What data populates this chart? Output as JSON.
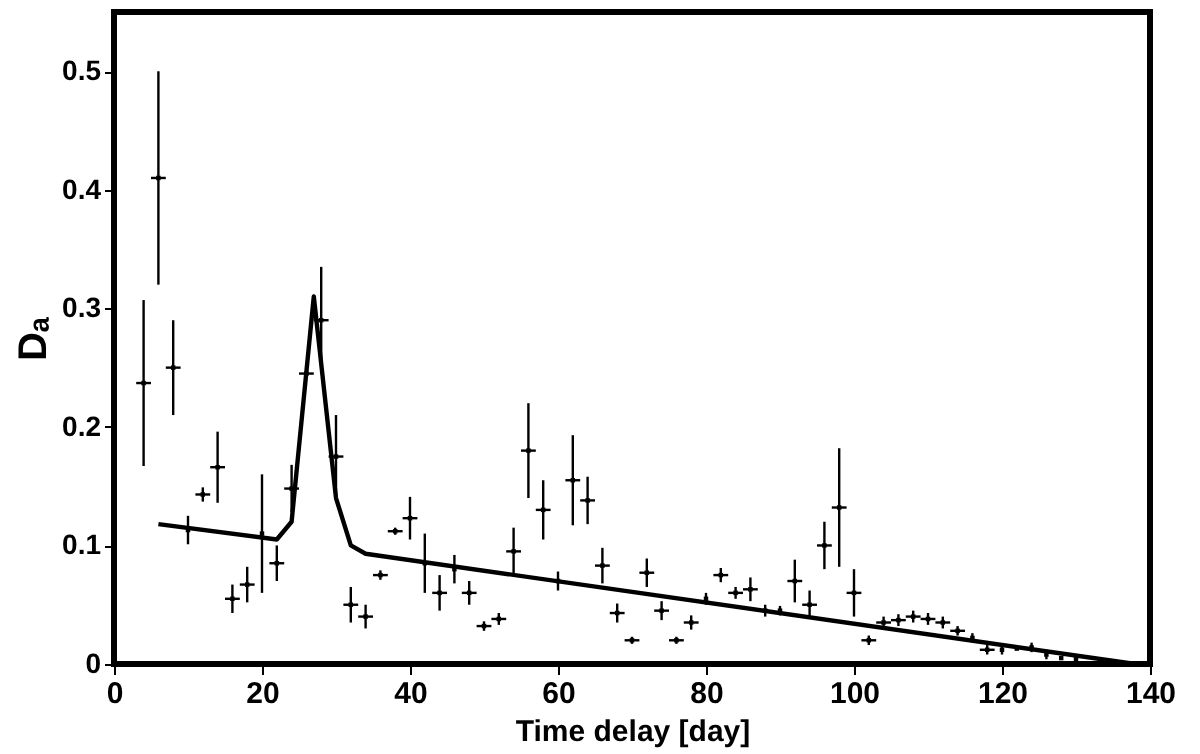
{
  "chart_data": {
    "type": "scatter",
    "xlabel": "Time delay [day]",
    "ylabel": "Dₐ",
    "xlim": [
      0,
      140
    ],
    "ylim": [
      0,
      0.55
    ],
    "xticks": [
      0,
      20,
      40,
      60,
      80,
      100,
      120,
      140
    ],
    "yticks": [
      0,
      0.1,
      0.2,
      0.3,
      0.4,
      0.5
    ],
    "grid": false,
    "series": [
      {
        "color": "#000000",
        "x": [
          4,
          6,
          8,
          10,
          12,
          14,
          16,
          18,
          20,
          22,
          24,
          26,
          28,
          30,
          32,
          34,
          36,
          38,
          40,
          42,
          44,
          46,
          48,
          50,
          52,
          54,
          56,
          58,
          60,
          62,
          64,
          66,
          68,
          70,
          72,
          74,
          76,
          78,
          80,
          82,
          84,
          86,
          88,
          90,
          92,
          94,
          96,
          98,
          100,
          102,
          104,
          106,
          108,
          110,
          112,
          114,
          116,
          118,
          120,
          122,
          124,
          126,
          128,
          130
        ],
        "values": [
          0.237,
          0.41,
          0.25,
          0.113,
          0.143,
          0.166,
          0.055,
          0.067,
          0.11,
          0.085,
          0.148,
          0.245,
          0.29,
          0.175,
          0.05,
          0.04,
          0.075,
          0.112,
          0.123,
          0.085,
          0.06,
          0.08,
          0.06,
          0.032,
          0.038,
          0.095,
          0.18,
          0.13,
          0.07,
          0.155,
          0.138,
          0.083,
          0.043,
          0.02,
          0.077,
          0.045,
          0.02,
          0.035,
          0.055,
          0.075,
          0.06,
          0.063,
          0.045,
          0.045,
          0.07,
          0.05,
          0.1,
          0.132,
          0.06,
          0.02,
          0.035,
          0.037,
          0.04,
          0.038,
          0.035,
          0.028,
          0.022,
          0.012,
          0.012,
          0.013,
          0.014,
          0.008,
          0.005,
          0.004
        ],
        "errors": [
          0.07,
          0.09,
          0.04,
          0.012,
          0.006,
          0.03,
          0.012,
          0.015,
          0.05,
          0.015,
          0.02,
          null,
          0.045,
          0.035,
          0.015,
          0.01,
          0.004,
          0.003,
          0.018,
          0.025,
          0.015,
          0.012,
          0.01,
          0.004,
          0.005,
          0.02,
          0.04,
          0.025,
          0.008,
          0.038,
          0.02,
          0.015,
          0.008,
          0.003,
          0.012,
          0.008,
          0.003,
          0.006,
          0.005,
          0.006,
          0.005,
          0.01,
          0.005,
          0.004,
          0.018,
          0.012,
          0.02,
          0.05,
          0.02,
          0.004,
          0.005,
          0.005,
          0.005,
          0.005,
          0.005,
          0.004,
          0.004,
          0.004,
          0.004,
          null,
          0.004,
          0.004,
          null,
          0.004
        ],
        "xerrors": [
          1,
          1,
          1,
          null,
          1,
          1,
          1,
          1,
          null,
          1,
          1,
          1,
          1,
          1,
          1,
          1,
          1,
          1,
          1,
          null,
          1,
          null,
          1,
          1,
          1,
          1,
          1,
          1,
          null,
          1,
          1,
          1,
          1,
          1,
          1,
          1,
          1,
          1,
          null,
          1,
          1,
          1,
          null,
          null,
          1,
          1,
          1,
          1,
          1,
          1,
          1,
          1,
          1,
          1,
          1,
          1,
          null,
          1,
          null,
          null,
          null,
          null,
          null,
          null
        ]
      },
      {
        "type": "line",
        "color": "#000000",
        "line_style": "solid",
        "x": [
          6,
          22,
          24,
          27,
          30,
          32,
          34,
          138
        ],
        "values": [
          0.118,
          0.105,
          0.12,
          0.31,
          0.14,
          0.1,
          0.093,
          0
        ]
      }
    ]
  }
}
